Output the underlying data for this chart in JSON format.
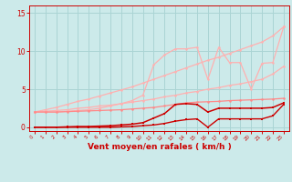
{
  "x": [
    0,
    1,
    2,
    3,
    4,
    5,
    6,
    7,
    8,
    9,
    10,
    11,
    12,
    13,
    14,
    15,
    16,
    17,
    18,
    19,
    20,
    21,
    22,
    23
  ],
  "line_upper_diag": [
    2.0,
    2.3,
    2.6,
    3.0,
    3.4,
    3.7,
    4.1,
    4.5,
    4.9,
    5.3,
    5.8,
    6.3,
    6.8,
    7.3,
    7.8,
    8.3,
    8.8,
    9.2,
    9.7,
    10.2,
    10.7,
    11.2,
    12.0,
    13.2
  ],
  "line_lower_diag": [
    2.0,
    2.1,
    2.2,
    2.3,
    2.5,
    2.6,
    2.8,
    2.9,
    3.1,
    3.3,
    3.5,
    3.7,
    4.0,
    4.2,
    4.5,
    4.7,
    5.0,
    5.2,
    5.5,
    5.7,
    6.0,
    6.3,
    7.0,
    8.0
  ],
  "line_jagged": [
    2.0,
    2.0,
    2.0,
    2.1,
    2.2,
    2.3,
    2.5,
    2.8,
    3.1,
    3.5,
    4.2,
    8.2,
    9.5,
    10.3,
    10.3,
    10.5,
    6.3,
    10.5,
    8.5,
    8.5,
    5.0,
    8.4,
    8.5,
    13.2
  ],
  "line_mid_pink": [
    2.0,
    2.0,
    2.0,
    2.05,
    2.1,
    2.15,
    2.2,
    2.25,
    2.3,
    2.4,
    2.5,
    2.6,
    2.8,
    3.0,
    3.2,
    3.3,
    3.35,
    3.4,
    3.5,
    3.55,
    3.6,
    3.65,
    3.7,
    3.8
  ],
  "line_dark_main": [
    0.0,
    0.0,
    0.0,
    0.05,
    0.1,
    0.1,
    0.15,
    0.2,
    0.3,
    0.4,
    0.6,
    1.2,
    1.8,
    3.0,
    3.1,
    3.0,
    2.0,
    2.5,
    2.5,
    2.5,
    2.5,
    2.5,
    2.6,
    3.2
  ],
  "line_dark_bottom": [
    0.0,
    0.0,
    0.0,
    0.0,
    0.0,
    0.0,
    0.0,
    0.0,
    0.05,
    0.1,
    0.2,
    0.3,
    0.5,
    0.8,
    1.0,
    1.1,
    0.0,
    1.1,
    1.1,
    1.1,
    1.1,
    1.1,
    1.5,
    3.0
  ],
  "bg_color": "#cceaea",
  "grid_color": "#aad4d4",
  "color_light_pink": "#ffb0b0",
  "color_mid_pink": "#ff8888",
  "color_dark_red": "#cc0000",
  "xlabel": "Vent moyen/en rafales ( km/h )",
  "ylim": [
    -0.5,
    16
  ],
  "xlim": [
    -0.5,
    23.5
  ],
  "yticks": [
    0,
    5,
    10,
    15
  ],
  "xticks": [
    0,
    1,
    2,
    3,
    4,
    5,
    6,
    7,
    8,
    9,
    10,
    11,
    12,
    13,
    14,
    15,
    16,
    17,
    18,
    19,
    20,
    21,
    22,
    23
  ]
}
